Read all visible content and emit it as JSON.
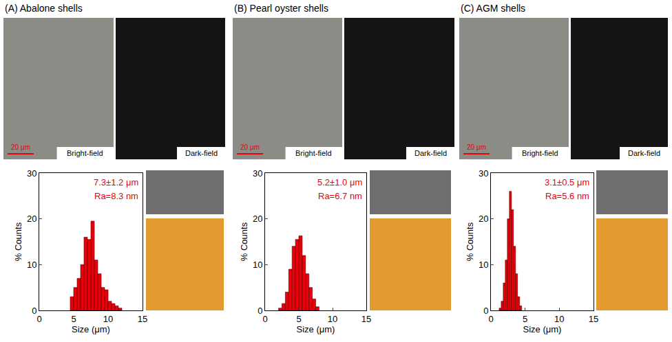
{
  "chart_data": [
    {
      "type": "histogram",
      "title": "(A) Abalone shells",
      "bins": [
        4.5,
        5,
        5.5,
        6,
        6.5,
        7,
        7.5,
        8,
        8.5,
        9,
        9.5,
        10,
        10.5,
        11,
        11.5,
        12
      ],
      "counts": [
        3,
        5,
        7,
        10,
        16,
        15.5,
        19.5,
        11,
        8,
        5,
        4.5,
        2,
        1.5,
        1,
        0.5
      ],
      "color": "#e8000b",
      "xlim": [
        0,
        15
      ],
      "xticks": [
        0,
        5,
        10,
        15
      ],
      "ylim": [
        0,
        30
      ],
      "yticks": [
        0,
        10,
        20,
        30
      ],
      "x_label": "Size (μm)",
      "y_label": "% Counts",
      "annotations": [
        "7.3±1.2 μm",
        "Ra=8.3 nm"
      ]
    },
    {
      "type": "histogram",
      "title": "(B) Pearl oyster shells",
      "bins": [
        2,
        2.5,
        3,
        3.5,
        4,
        4.5,
        5,
        5.5,
        6,
        6.5,
        7,
        7.5,
        8
      ],
      "counts": [
        0.5,
        1.5,
        4,
        9,
        14,
        15.5,
        16.3,
        12,
        8,
        5,
        2.5,
        0.8
      ],
      "color": "#e8000b",
      "xlim": [
        0,
        15
      ],
      "xticks": [
        0,
        5,
        10,
        15
      ],
      "ylim": [
        0,
        30
      ],
      "yticks": [
        0,
        10,
        20,
        30
      ],
      "x_label": "Size (μm)",
      "y_label": "% Counts",
      "annotations": [
        "5.2±1.0 μm",
        "Ra=6.7 nm"
      ]
    },
    {
      "type": "histogram",
      "title": "(C) AGM shells",
      "bins": [
        1.2,
        1.5,
        1.8,
        2.1,
        2.4,
        2.7,
        3.0,
        3.3,
        3.6,
        3.9,
        4.2,
        4.5
      ],
      "counts": [
        0.5,
        2,
        6,
        11,
        20,
        26,
        22,
        14,
        8,
        3,
        1
      ],
      "color": "#e8000b",
      "xlim": [
        0,
        15
      ],
      "xticks": [
        0,
        5,
        10,
        15
      ],
      "ylim": [
        0,
        30
      ],
      "yticks": [
        0,
        10,
        20,
        30
      ],
      "x_label": "Size (μm)",
      "y_label": "% Counts",
      "annotations": [
        "3.1±0.5 μm",
        "Ra=5.6 nm"
      ]
    }
  ],
  "panels": [
    {
      "image_labels": [
        "Bright-field",
        "Dark-field"
      ],
      "scale_bar": "20 μm"
    },
    {
      "image_labels": [
        "Bright-field",
        "Dark-field"
      ],
      "scale_bar": "20 μm"
    },
    {
      "image_labels": [
        "Bright-field",
        "Dark-field"
      ],
      "scale_bar": "20 μm"
    }
  ]
}
